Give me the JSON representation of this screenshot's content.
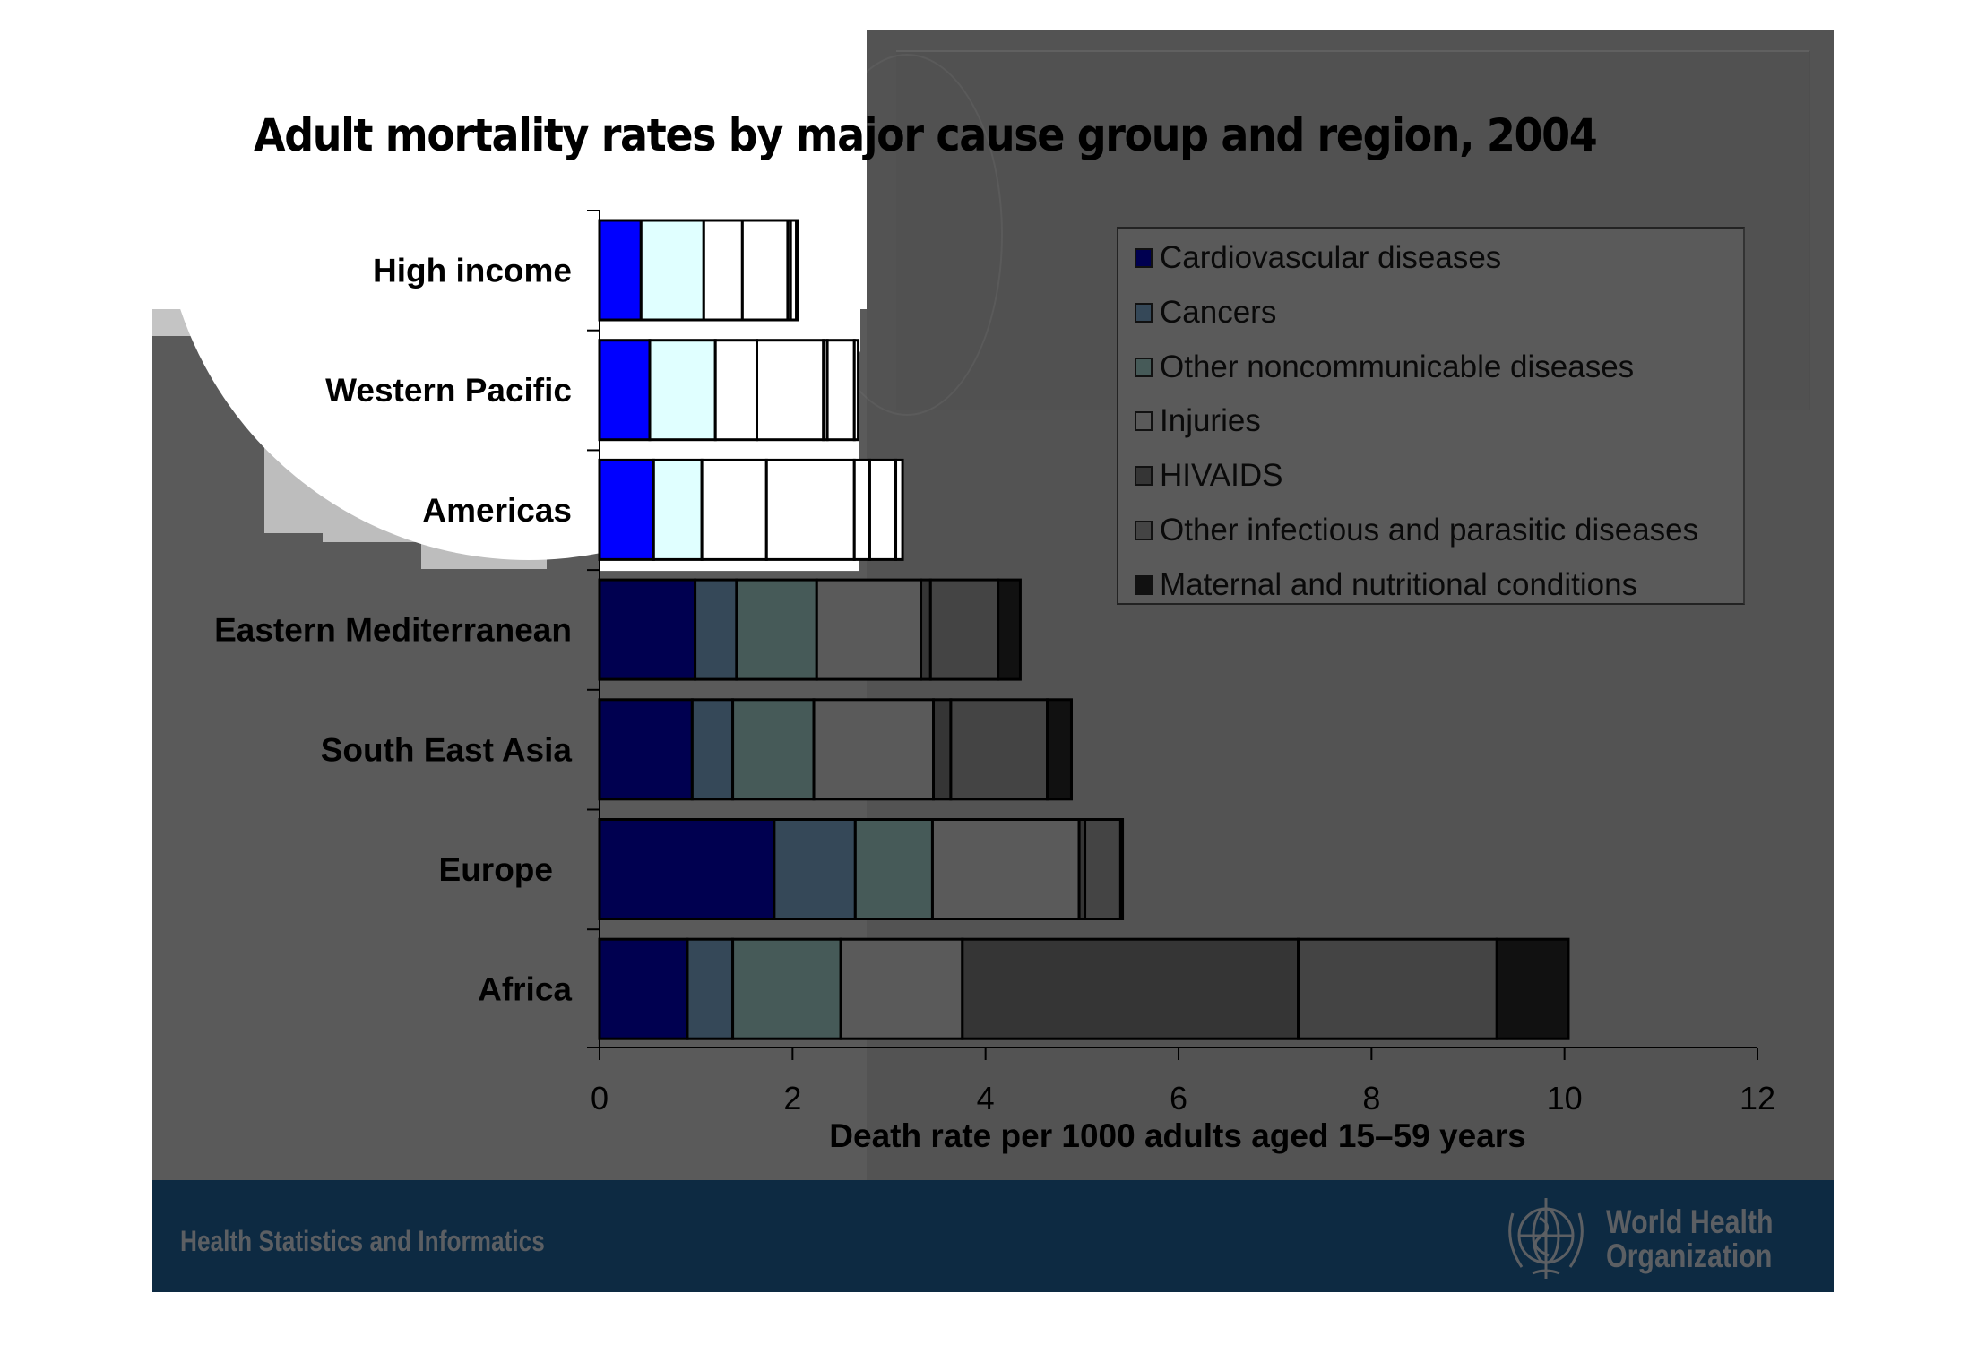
{
  "slide": {
    "footer_text": "Health Statistics and Informatics",
    "org_name_line1": "World Health",
    "org_name_line2": "Organization",
    "logo_icon": "who-emblem-icon"
  },
  "colors": {
    "slide_background": "#5a5a5a",
    "footer_background": "#0d2a42"
  },
  "chart_data": {
    "type": "bar",
    "orientation": "horizontal",
    "stacked": true,
    "title": "Adult mortality rates by major cause group and region, 2004",
    "xlabel": "Death rate per 1000 adults aged 15–59 years",
    "ylabel": "",
    "xlim": [
      0,
      12
    ],
    "xticks": [
      "0",
      "2",
      "4",
      "6",
      "8",
      "10",
      "12"
    ],
    "grid": false,
    "legend_position": "top-right",
    "categories": [
      "High income",
      "Western Pacific",
      "Americas",
      "Eastern Mediterranean",
      "South East Asia",
      "Europe",
      "Africa"
    ],
    "series": [
      {
        "name": "Cardiovascular diseases",
        "color": "#000050",
        "highlight_color": "#0000ff",
        "values": [
          0.43,
          0.52,
          0.56,
          0.99,
          0.96,
          1.81,
          0.91
        ]
      },
      {
        "name": "Cancers",
        "color": "#354858",
        "highlight_color": "#e0ffff",
        "values": [
          0.65,
          0.68,
          0.5,
          0.43,
          0.42,
          0.84,
          0.47
        ]
      },
      {
        "name": "Other noncommunicable diseases",
        "color": "#465a58",
        "highlight_color": "#ffffff",
        "values": [
          0.4,
          0.43,
          0.67,
          0.83,
          0.84,
          0.8,
          1.12
        ]
      },
      {
        "name": "Injuries",
        "color": "#5a5a5a",
        "highlight_color": "#ffffff",
        "values": [
          0.47,
          0.69,
          0.91,
          1.08,
          1.24,
          1.52,
          1.26
        ]
      },
      {
        "name": "HIVAIDS",
        "color": "#353535",
        "highlight_color": "#ffffff",
        "values": [
          0.03,
          0.04,
          0.16,
          0.1,
          0.18,
          0.06,
          3.48
        ]
      },
      {
        "name": "Other infectious and parasitic diseases",
        "color": "#444444",
        "highlight_color": "#ffffff",
        "values": [
          0.06,
          0.28,
          0.27,
          0.7,
          1.0,
          0.37,
          2.06
        ]
      },
      {
        "name": "Maternal and nutritional conditions",
        "color": "#111111",
        "highlight_color": "#ffffff",
        "values": [
          0.01,
          0.04,
          0.07,
          0.23,
          0.25,
          0.02,
          0.74
        ]
      }
    ],
    "highlighted_categories": [
      "High income",
      "Western Pacific",
      "Americas"
    ]
  }
}
